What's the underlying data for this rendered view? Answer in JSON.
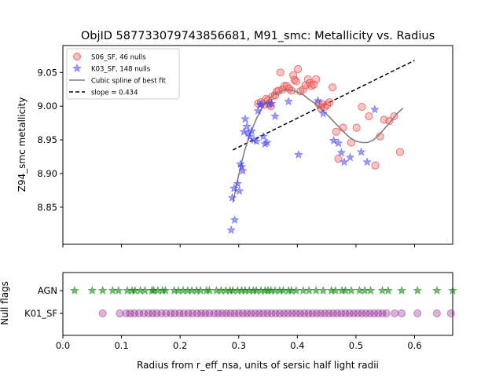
{
  "chart_data": [
    {
      "type": "scatter",
      "title": "ObjID 587733079743856681, M91_smc: Metallicity vs. Radius",
      "ylabel": "Z94_smc metallicity",
      "xlim": [
        0.0,
        0.665
      ],
      "ylim": [
        8.795,
        9.09
      ],
      "yticks": [
        8.85,
        8.9,
        8.95,
        9.0,
        9.05
      ],
      "ytick_labels": [
        "8.85",
        "8.90",
        "8.95",
        "9.00",
        "9.05"
      ],
      "xticks": [
        0.0,
        0.1,
        0.2,
        0.3,
        0.4,
        0.5,
        0.6
      ],
      "legend_position": "upper-left",
      "colors": {
        "s06": "#ff6b6b",
        "k03": "#4a4aff",
        "spline": "#808080",
        "fit": "#000000"
      },
      "series": [
        {
          "name": "S06_SF, 46 nulls",
          "marker": "circle",
          "points": [
            [
              0.333,
              9.004
            ],
            [
              0.338,
              9.006
            ],
            [
              0.343,
              9.002
            ],
            [
              0.347,
              9.011
            ],
            [
              0.35,
              9.009
            ],
            [
              0.352,
              9.003
            ],
            [
              0.355,
              9.0
            ],
            [
              0.358,
              9.015
            ],
            [
              0.362,
              9.016
            ],
            [
              0.365,
              9.022
            ],
            [
              0.368,
              9.023
            ],
            [
              0.371,
              9.05
            ],
            [
              0.375,
              9.025
            ],
            [
              0.378,
              9.03
            ],
            [
              0.382,
              9.03
            ],
            [
              0.386,
              9.026
            ],
            [
              0.39,
              9.023
            ],
            [
              0.393,
              9.046
            ],
            [
              0.395,
              9.039
            ],
            [
              0.398,
              9.037
            ],
            [
              0.401,
              9.055
            ],
            [
              0.405,
              9.022
            ],
            [
              0.41,
              9.025
            ],
            [
              0.414,
              9.031
            ],
            [
              0.418,
              9.04
            ],
            [
              0.421,
              9.034
            ],
            [
              0.424,
              9.03
            ],
            [
              0.428,
              9.032
            ],
            [
              0.432,
              9.04
            ],
            [
              0.436,
              9.004
            ],
            [
              0.44,
              8.997
            ],
            [
              0.443,
              9.003
            ],
            [
              0.447,
              8.999
            ],
            [
              0.451,
              9.002
            ],
            [
              0.455,
              9.006
            ],
            [
              0.46,
              9.028
            ],
            [
              0.466,
              8.962
            ],
            [
              0.47,
              8.922
            ],
            [
              0.478,
              8.968
            ],
            [
              0.492,
              8.946
            ],
            [
              0.501,
              8.968
            ],
            [
              0.51,
              8.999
            ],
            [
              0.522,
              8.985
            ],
            [
              0.533,
              8.912
            ],
            [
              0.541,
              8.955
            ],
            [
              0.548,
              8.98
            ],
            [
              0.557,
              8.978
            ],
            [
              0.565,
              8.985
            ],
            [
              0.575,
              8.932
            ]
          ]
        },
        {
          "name": "K03_SF, 148 nulls",
          "marker": "star",
          "points": [
            [
              0.287,
              8.816
            ],
            [
              0.289,
              8.864
            ],
            [
              0.292,
              8.878
            ],
            [
              0.293,
              8.831
            ],
            [
              0.298,
              8.885
            ],
            [
              0.301,
              8.874
            ],
            [
              0.303,
              8.914
            ],
            [
              0.305,
              8.91
            ],
            [
              0.307,
              8.904
            ],
            [
              0.309,
              8.962
            ],
            [
              0.311,
              8.981
            ],
            [
              0.314,
              8.97
            ],
            [
              0.316,
              8.96
            ],
            [
              0.319,
              8.955
            ],
            [
              0.322,
              8.963
            ],
            [
              0.326,
              8.95
            ],
            [
              0.33,
              8.948
            ],
            [
              0.333,
              8.993
            ],
            [
              0.336,
              9.002
            ],
            [
              0.339,
              9.003
            ],
            [
              0.342,
              8.955
            ],
            [
              0.345,
              8.944
            ],
            [
              0.348,
              8.946
            ],
            [
              0.352,
              9.003
            ],
            [
              0.356,
              9.004
            ],
            [
              0.362,
              8.985
            ],
            [
              0.385,
              9.007
            ],
            [
              0.402,
              8.928
            ],
            [
              0.435,
              9.008
            ],
            [
              0.444,
              8.989
            ],
            [
              0.462,
              8.949
            ],
            [
              0.47,
              8.945
            ],
            [
              0.475,
              8.931
            ],
            [
              0.48,
              8.917
            ],
            [
              0.49,
              8.924
            ],
            [
              0.509,
              8.932
            ],
            [
              0.519,
              8.917
            ],
            [
              0.532,
              8.995
            ]
          ]
        },
        {
          "name": "Cubic spline of best fit",
          "line": "solid",
          "points": [
            [
              0.29,
              8.857
            ],
            [
              0.3,
              8.898
            ],
            [
              0.31,
              8.934
            ],
            [
              0.32,
              8.96
            ],
            [
              0.33,
              8.981
            ],
            [
              0.34,
              8.998
            ],
            [
              0.35,
              9.009
            ],
            [
              0.36,
              9.017
            ],
            [
              0.37,
              9.022
            ],
            [
              0.38,
              9.024
            ],
            [
              0.39,
              9.024
            ],
            [
              0.4,
              9.021
            ],
            [
              0.41,
              9.017
            ],
            [
              0.42,
              9.01
            ],
            [
              0.43,
              9.004
            ],
            [
              0.44,
              8.996
            ],
            [
              0.45,
              8.988
            ],
            [
              0.46,
              8.979
            ],
            [
              0.47,
              8.97
            ],
            [
              0.48,
              8.961
            ],
            [
              0.49,
              8.953
            ],
            [
              0.5,
              8.948
            ],
            [
              0.51,
              8.946
            ],
            [
              0.52,
              8.946
            ],
            [
              0.53,
              8.95
            ],
            [
              0.54,
              8.958
            ],
            [
              0.55,
              8.968
            ],
            [
              0.56,
              8.978
            ],
            [
              0.57,
              8.989
            ],
            [
              0.58,
              8.997
            ]
          ]
        },
        {
          "name": "slope = 0.434",
          "line": "dashed",
          "points": [
            [
              0.29,
              8.935
            ],
            [
              0.6,
              9.068
            ]
          ]
        }
      ]
    },
    {
      "type": "scatter",
      "xlabel": "Radius from r_eff_nsa, units of sersic half light radii",
      "ylabel": "Null flags",
      "xlim": [
        0.0,
        0.665
      ],
      "xticks": [
        0.0,
        0.1,
        0.2,
        0.3,
        0.4,
        0.5,
        0.6
      ],
      "xtick_labels": [
        "0.0",
        "0.1",
        "0.2",
        "0.3",
        "0.4",
        "0.5",
        "0.6"
      ],
      "categories": [
        "AGN",
        "K01_SF"
      ],
      "colors": {
        "AGN": "#008000",
        "K01_SF": "#800080"
      },
      "series": [
        {
          "name": "AGN",
          "marker": "star",
          "x": [
            0.02,
            0.05,
            0.068,
            0.085,
            0.095,
            0.11,
            0.118,
            0.123,
            0.132,
            0.14,
            0.152,
            0.155,
            0.162,
            0.17,
            0.175,
            0.19,
            0.197,
            0.205,
            0.213,
            0.22,
            0.228,
            0.235,
            0.245,
            0.25,
            0.262,
            0.27,
            0.278,
            0.285,
            0.29,
            0.298,
            0.305,
            0.311,
            0.318,
            0.325,
            0.33,
            0.338,
            0.345,
            0.35,
            0.355,
            0.362,
            0.37,
            0.376,
            0.385,
            0.39,
            0.398,
            0.41,
            0.42,
            0.432,
            0.444,
            0.458,
            0.465,
            0.476,
            0.482,
            0.492,
            0.506,
            0.515,
            0.525,
            0.545,
            0.555,
            0.578,
            0.605,
            0.638,
            0.665
          ]
        },
        {
          "name": "K01_SF",
          "marker": "circle",
          "x": [
            0.068,
            0.097,
            0.108,
            0.115,
            0.122,
            0.13,
            0.138,
            0.146,
            0.153,
            0.16,
            0.168,
            0.176,
            0.184,
            0.191,
            0.199,
            0.206,
            0.214,
            0.221,
            0.229,
            0.236,
            0.243,
            0.25,
            0.258,
            0.265,
            0.272,
            0.279,
            0.286,
            0.293,
            0.3,
            0.307,
            0.314,
            0.321,
            0.328,
            0.335,
            0.342,
            0.349,
            0.356,
            0.363,
            0.37,
            0.377,
            0.384,
            0.391,
            0.398,
            0.405,
            0.412,
            0.419,
            0.426,
            0.433,
            0.44,
            0.447,
            0.454,
            0.461,
            0.468,
            0.475,
            0.482,
            0.489,
            0.496,
            0.503,
            0.51,
            0.517,
            0.524,
            0.531,
            0.538,
            0.545,
            0.552,
            0.566,
            0.578,
            0.605,
            0.638,
            0.662
          ]
        }
      ]
    }
  ]
}
